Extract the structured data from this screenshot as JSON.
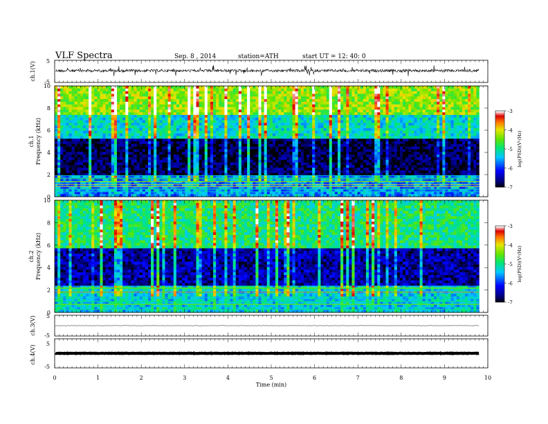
{
  "header": {
    "title": "VLF  Spectra",
    "date": "Sep. 8  , 2014",
    "station": "station=ATH",
    "start": "start  UT  =    12: 40: 0"
  },
  "chart_data": [
    {
      "type": "line",
      "name": "ch1-waveform",
      "ylabel": "ch.1(V)",
      "ylim": [
        -5,
        5
      ],
      "yticks": [
        "5",
        "-5"
      ],
      "xlim": [
        0,
        10
      ],
      "note_values": "noisy waveform centred near 0.3 V with spikes up to about 2 V",
      "baseline": 0.3
    },
    {
      "type": "heatmap",
      "name": "ch1-spectrogram",
      "ylabel_line1": "ch.1",
      "ylabel_line2": "Frequency  (kHz)",
      "ylim": [
        0,
        10
      ],
      "yticks": [
        "0",
        "2",
        "4",
        "6",
        "8",
        "10"
      ],
      "xlim": [
        0,
        9.8
      ],
      "colorbar": {
        "label": "log(PSD)(V²/Hz)",
        "range": [
          -7,
          -3
        ],
        "ticks": [
          "-3",
          "-4",
          "-5",
          "-6",
          "-7"
        ]
      },
      "bands": [
        {
          "from": 0,
          "to": 1.8,
          "level": -5.6
        },
        {
          "from": 1.8,
          "to": 5.2,
          "level": -6.8
        },
        {
          "from": 5.2,
          "to": 7.5,
          "level": -5.2
        },
        {
          "from": 7.5,
          "to": 10,
          "level": -4.3
        }
      ]
    },
    {
      "type": "heatmap",
      "name": "ch2-spectrogram",
      "ylabel_line1": "ch.2",
      "ylabel_line2": "Frequency  (kHz)",
      "ylim": [
        0,
        10
      ],
      "yticks": [
        "0",
        "2",
        "4",
        "6",
        "8",
        "10"
      ],
      "xlim": [
        0,
        9.8
      ],
      "colorbar": {
        "label": "log(PSD)(V²/Hz)",
        "range": [
          -7,
          -3
        ],
        "ticks": [
          "-3",
          "-4",
          "-5",
          "-6",
          "-7"
        ]
      },
      "bands": [
        {
          "from": 0,
          "to": 2.5,
          "level": -5.3
        },
        {
          "from": 2.5,
          "to": 5.8,
          "level": -6.5
        },
        {
          "from": 5.8,
          "to": 10,
          "level": -4.9
        }
      ]
    },
    {
      "type": "line",
      "name": "ch3-waveform",
      "ylabel": "ch.3(V)",
      "ylim": [
        -5,
        5
      ],
      "yticks": [
        "5",
        "-5"
      ],
      "xlim": [
        0,
        10
      ],
      "baseline": 0
    },
    {
      "type": "line",
      "name": "ch4-waveform",
      "ylabel": "ch.4(V)",
      "ylim": [
        -5,
        5
      ],
      "yticks": [
        "5",
        "-5"
      ],
      "xlim": [
        0,
        10
      ],
      "baseline": 0
    }
  ],
  "xaxis": {
    "label": "Time  (min)",
    "ticks": [
      "0",
      "1",
      "2",
      "3",
      "4",
      "5",
      "6",
      "7",
      "8",
      "9",
      "10"
    ]
  }
}
